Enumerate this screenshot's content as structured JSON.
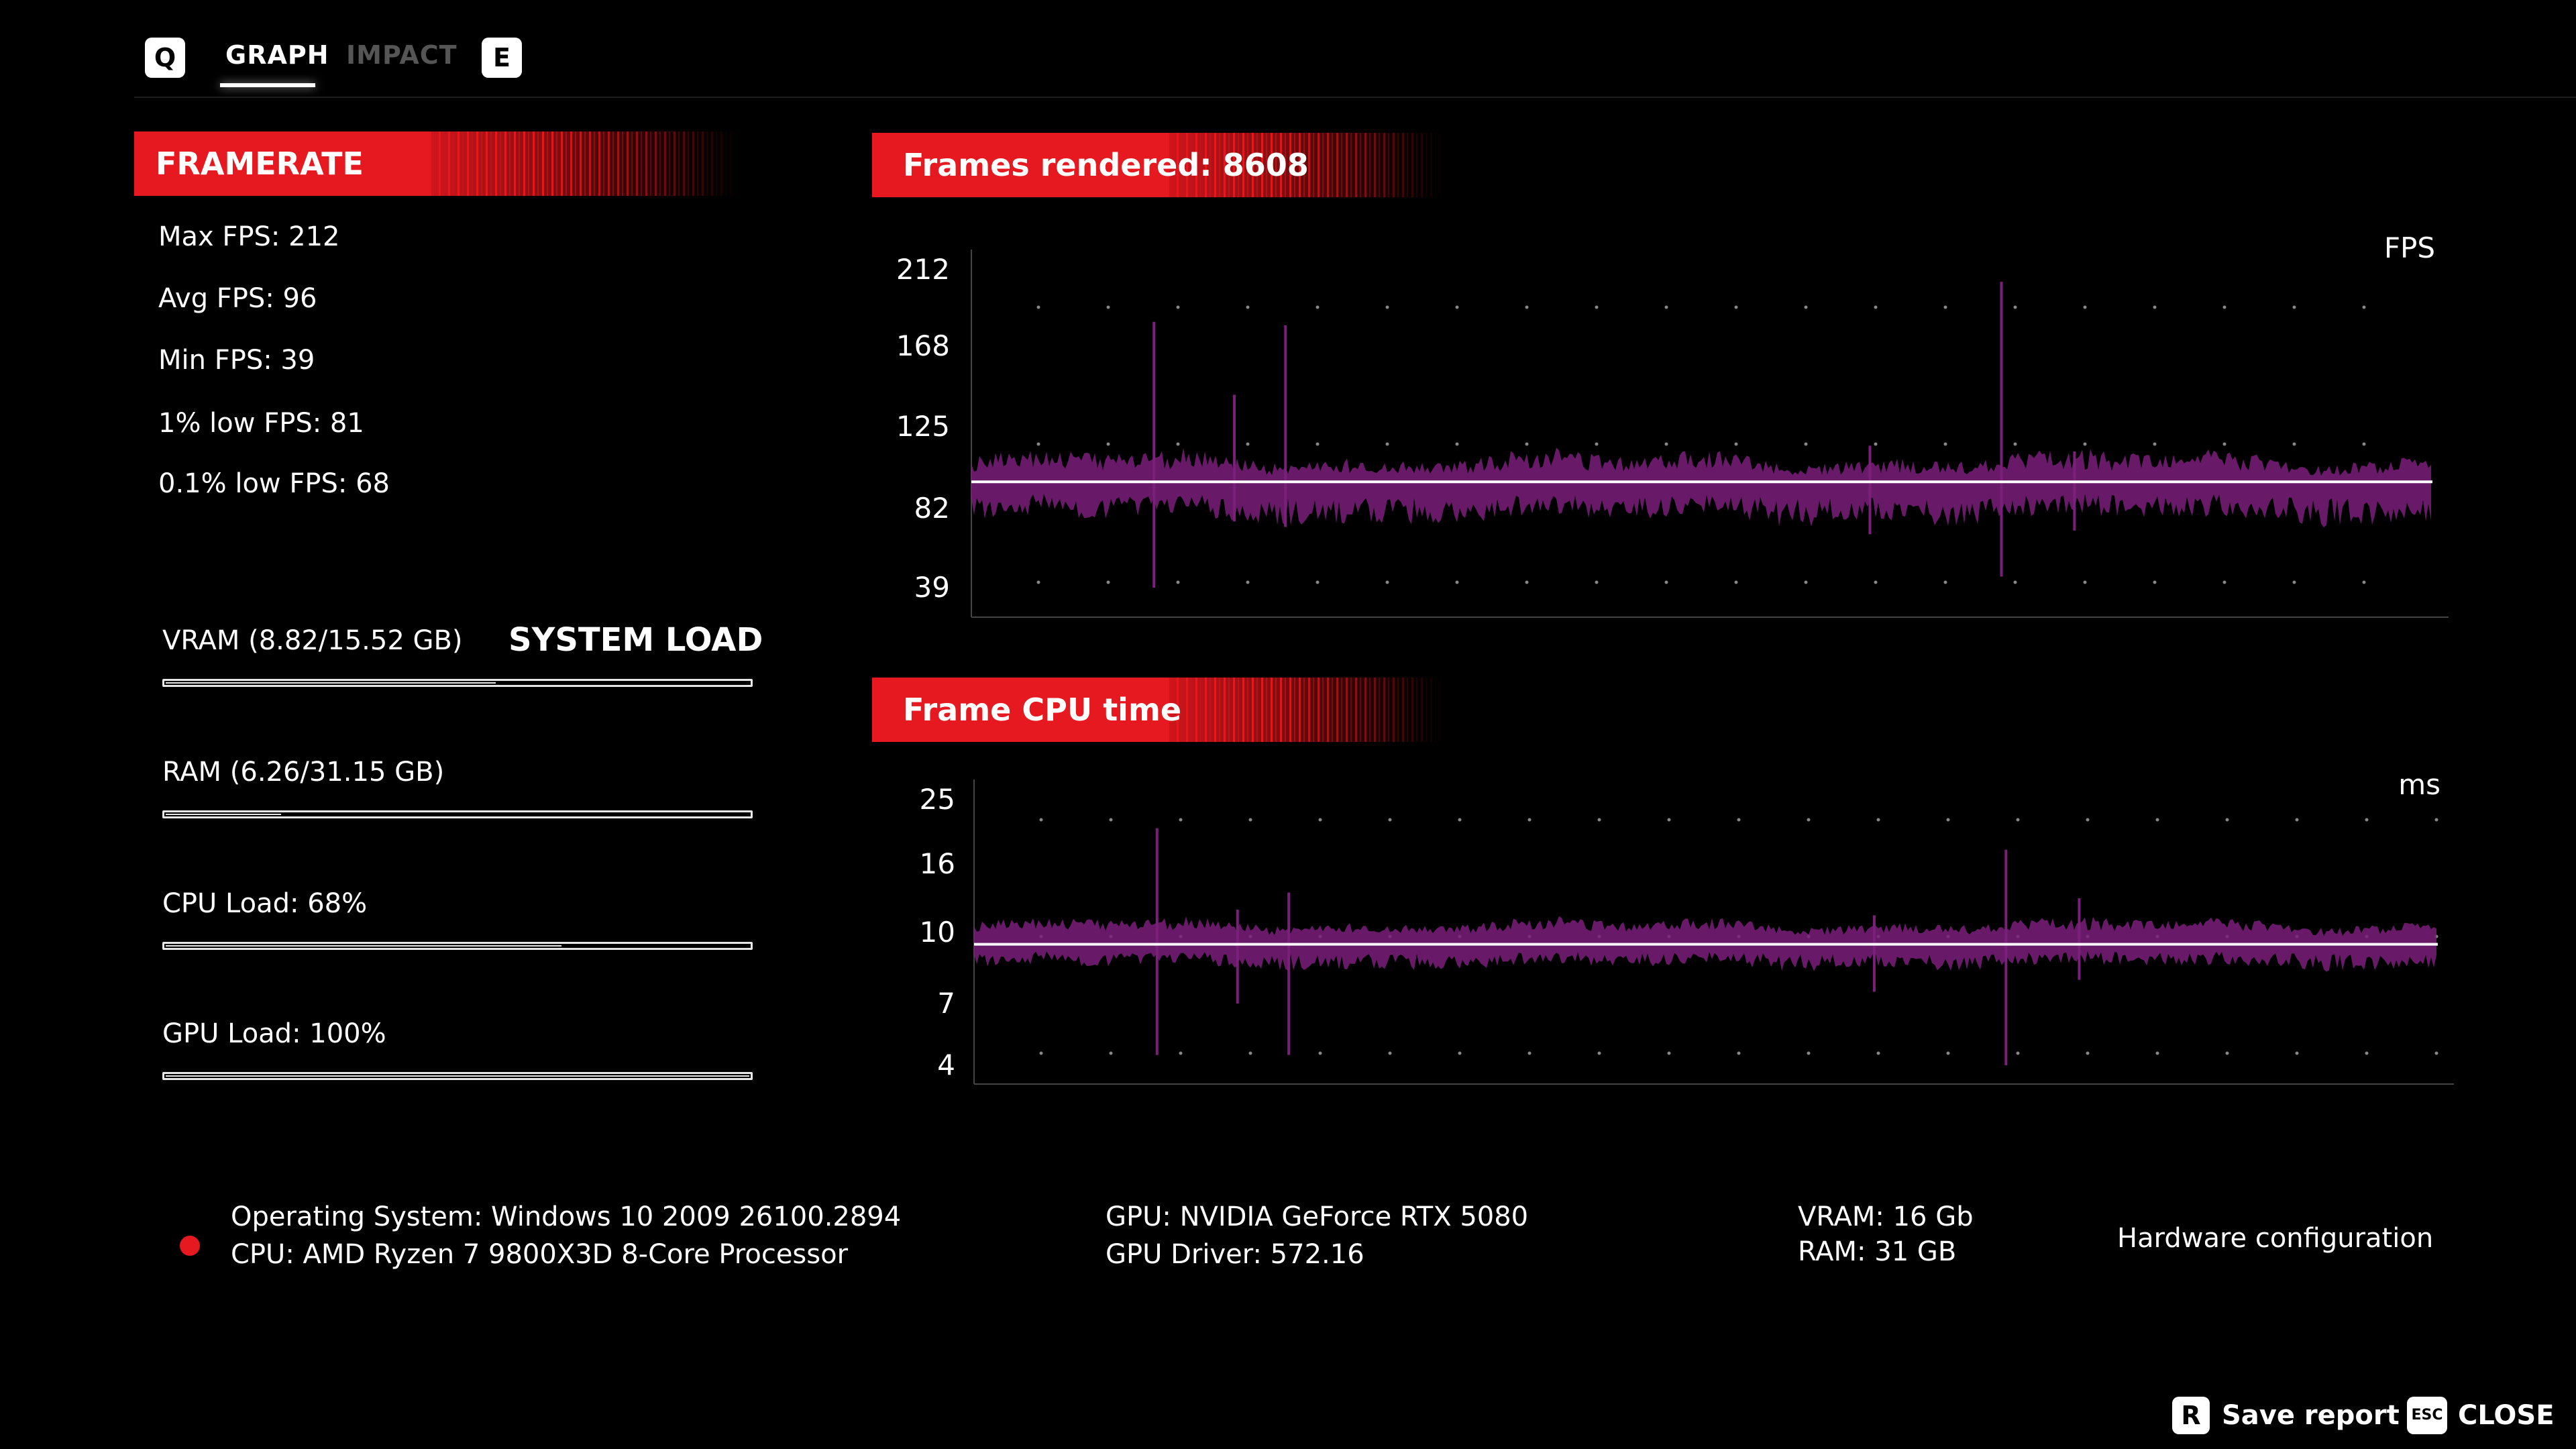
{
  "tabs": {
    "prev_key": "Q",
    "graph": "GRAPH",
    "impact": "IMPACT",
    "next_key": "E"
  },
  "framerate": {
    "title": "FRAMERATE",
    "max": "Max FPS: 212",
    "avg": "Avg FPS: 96",
    "min": "Min FPS: 39",
    "low1": "1% low FPS: 81",
    "low01": "0.1% low FPS: 68"
  },
  "system_load": {
    "title": "SYSTEM LOAD",
    "vram": {
      "label": "VRAM (8.82/15.52 GB)",
      "fraction": 0.568
    },
    "ram": {
      "label": "RAM (6.26/31.15 GB)",
      "fraction": 0.201
    },
    "cpu": {
      "label": "CPU Load: 68%",
      "fraction": 0.68
    },
    "gpu": {
      "label": "GPU Load: 100%",
      "fraction": 1.0
    }
  },
  "hardware": {
    "os": "Operating System: Windows 10 2009 26100.2894",
    "cpu": "CPU: AMD Ryzen 7 9800X3D 8-Core Processor",
    "gpu": "GPU: NVIDIA GeForce RTX 5080",
    "gpu_driver": "GPU Driver: 572.16",
    "vram": "VRAM: 16 Gb",
    "ram": "RAM: 31 GB",
    "section_label": "Hardware configuration",
    "status_color": "#e5191f"
  },
  "actions": {
    "save_key": "R",
    "save_label": "Save report",
    "close_key": "ESC",
    "close_label": "CLOSE"
  },
  "colors": {
    "accent_red": "#e5191f",
    "series_purple": "#7a1f7a",
    "average_line": "#ffffff"
  },
  "chart_data": [
    {
      "type": "area",
      "title": "Frames rendered: 8608",
      "unit": "FPS",
      "y_ticks": [
        "212",
        "168",
        "125",
        "82",
        "39"
      ],
      "ylim": [
        39,
        212
      ],
      "average": 96,
      "baseline_range": [
        75,
        110
      ],
      "spikes": [
        {
          "x_frac": 0.125,
          "low": 39,
          "high": 182
        },
        {
          "x_frac": 0.18,
          "low": 75,
          "high": 142
        },
        {
          "x_frac": 0.215,
          "low": 72,
          "high": 180
        },
        {
          "x_frac": 0.615,
          "low": 68,
          "high": 115
        },
        {
          "x_frac": 0.705,
          "low": 45,
          "high": 205
        },
        {
          "x_frac": 0.755,
          "low": 70,
          "high": 112
        }
      ],
      "grid": "dotted"
    },
    {
      "type": "area",
      "title": "Frame CPU time",
      "unit": "ms",
      "y_ticks": [
        "25",
        "16",
        "10",
        "7",
        "4"
      ],
      "ylim": [
        4,
        25
      ],
      "average": 9.5,
      "baseline_range": [
        8.5,
        11
      ],
      "spikes": [
        {
          "x_frac": 0.125,
          "low": 4.5,
          "high": 21
        },
        {
          "x_frac": 0.18,
          "low": 7,
          "high": 12
        },
        {
          "x_frac": 0.215,
          "low": 4.5,
          "high": 13.5
        },
        {
          "x_frac": 0.615,
          "low": 7.5,
          "high": 11.5
        },
        {
          "x_frac": 0.705,
          "low": 4,
          "high": 18
        },
        {
          "x_frac": 0.755,
          "low": 8,
          "high": 13
        }
      ],
      "grid": "dotted"
    }
  ]
}
